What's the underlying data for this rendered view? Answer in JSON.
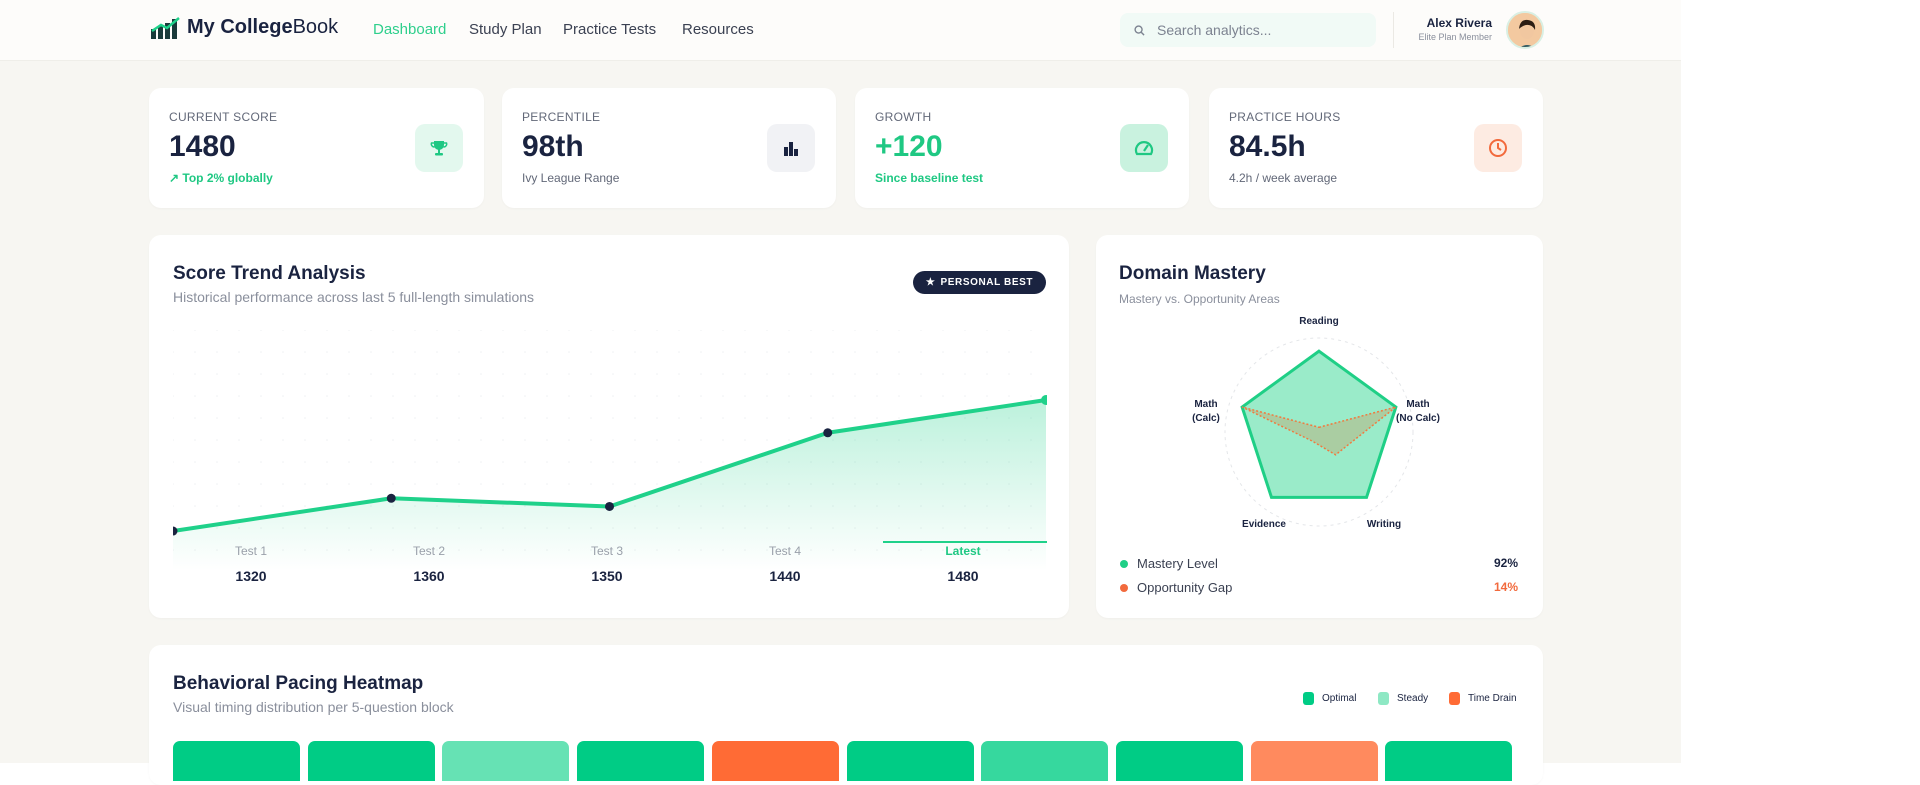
{
  "header": {
    "brand_bold": "My College",
    "brand_light": "Book",
    "nav": [
      {
        "label": "Dashboard",
        "active": true
      },
      {
        "label": "Study Plan"
      },
      {
        "label": "Practice Tests"
      },
      {
        "label": "Resources"
      }
    ],
    "search": {
      "placeholder": "Search analytics...",
      "value": "",
      "icon": "search-icon"
    },
    "user": {
      "name": "Alex Rivera",
      "plan": "Elite Plan Member"
    }
  },
  "stats": [
    {
      "label": "CURRENT SCORE",
      "value": "1480",
      "sub": "Top 2% globally",
      "sub_icon": "trending-up-icon",
      "icon": "trophy-icon",
      "color": "#1fc883"
    },
    {
      "label": "PERCENTILE",
      "value": "98th",
      "sub": "Ivy League Range",
      "icon": "bar-chart-icon",
      "color": "#1a2340"
    },
    {
      "label": "GROWTH",
      "value": "+120",
      "sub": "Since baseline test",
      "icon": "gauge-icon",
      "color": "#1fc883"
    },
    {
      "label": "PRACTICE HOURS",
      "value": "84.5h",
      "sub": "4.2h / week average",
      "icon": "clock-icon",
      "color": "#f26a3d"
    }
  ],
  "trend": {
    "title": "Score Trend Analysis",
    "subtitle": "Historical performance across last 5 full-length simulations",
    "badge": "PERSONAL BEST",
    "chart_data": {
      "type": "area",
      "categories": [
        "Test 1",
        "Test 2",
        "Test 3",
        "Test 4",
        "Latest"
      ],
      "values": [
        1320,
        1360,
        1350,
        1440,
        1480
      ],
      "value_labels": [
        "1320",
        "1360",
        "1350",
        "1440",
        "1480"
      ],
      "highlight": "Latest",
      "grid": true,
      "color": "#1fd18a"
    }
  },
  "mastery": {
    "title": "Domain Mastery",
    "subtitle": "Mastery vs. Opportunity Areas",
    "chart_data": {
      "type": "radar",
      "axes": [
        "Reading",
        "Math (No Calc)",
        "Writing",
        "Evidence",
        "Math (Calc)"
      ],
      "series": [
        {
          "name": "Mastery Level",
          "values": [
            86,
            86,
            86,
            86,
            86
          ],
          "color": "#1fcf86"
        },
        {
          "name": "Opportunity Gap",
          "values": [
            5,
            86,
            30,
            12,
            86
          ],
          "color": "#f07a3f"
        }
      ],
      "range": [
        0,
        100
      ]
    },
    "legend": [
      {
        "label": "Mastery Level",
        "value": "92%",
        "color": "#1fcf86"
      },
      {
        "label": "Opportunity Gap",
        "value": "14%",
        "color": "#f26a3d"
      }
    ]
  },
  "heatmap": {
    "title": "Behavioral Pacing Heatmap",
    "subtitle": "Visual timing distribution per 5-question block",
    "legend": [
      {
        "label": "Optimal",
        "color": "#00cc85"
      },
      {
        "label": "Steady",
        "color": "#8ee8c4"
      },
      {
        "label": "Time Drain",
        "color": "#ff6b35"
      }
    ],
    "cells": [
      {
        "status": "Optimal",
        "color": "#00cc85"
      },
      {
        "status": "Optimal",
        "color": "#00cc85"
      },
      {
        "status": "Steady",
        "color": "#66e2b4"
      },
      {
        "status": "Optimal",
        "color": "#00cc85"
      },
      {
        "status": "Time Drain",
        "color": "#ff6b35"
      },
      {
        "status": "Optimal",
        "color": "#00cc85"
      },
      {
        "status": "Steady",
        "color": "#36d89e"
      },
      {
        "status": "Optimal",
        "color": "#00cc85"
      },
      {
        "status": "Time Drain",
        "color": "#ff8a5e"
      },
      {
        "status": "Optimal",
        "color": "#00cc85"
      }
    ]
  }
}
